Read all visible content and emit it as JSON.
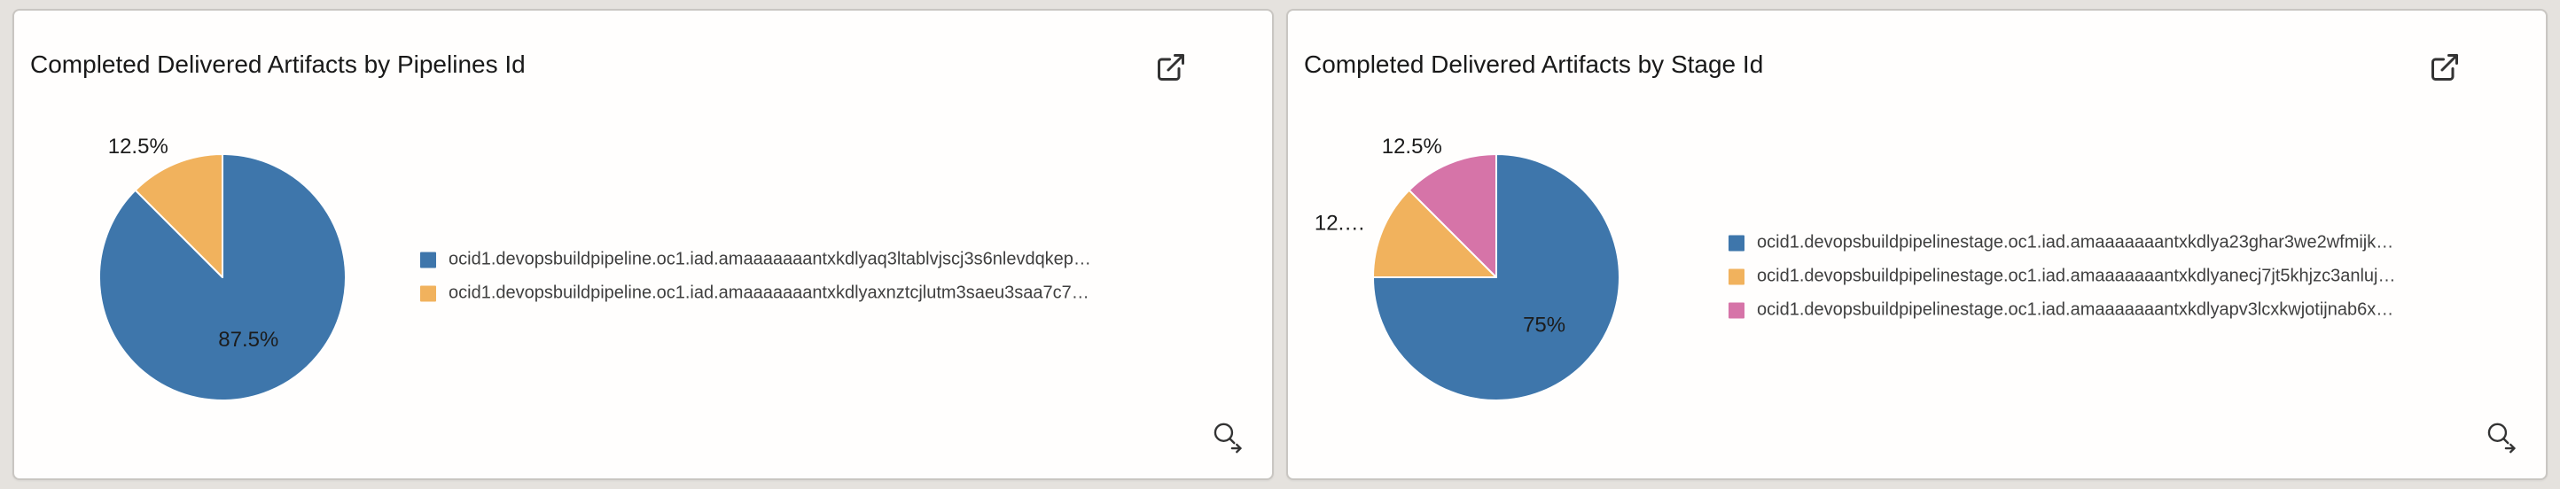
{
  "page": {
    "background_color": "#e5e2de",
    "card_background": "#fffefd"
  },
  "cards": [
    {
      "title": "Completed Delivered Artifacts by Pipelines Id",
      "launch_icon": "open-in-new-window-icon",
      "drill_icon": "magnifier-arrow-icon"
    },
    {
      "title": "Completed Delivered Artifacts by Stage Id",
      "launch_icon": "open-in-new-window-icon",
      "drill_icon": "magnifier-arrow-icon"
    }
  ],
  "chart_data": [
    {
      "type": "pie",
      "title": "Completed Delivered Artifacts by Pipelines Id",
      "unit": "percent",
      "start_angle_deg": 0,
      "direction": "clockwise",
      "legend_position": "right",
      "slices": [
        {
          "name": "ocid1.devopsbuildpipeline.oc1.iad.amaaaaaaantxkdlyaq3ltablvjscj3s6nlevdqkep…",
          "value": 87.5,
          "label": "87.5%",
          "label_placement": "inside",
          "color": "#3e76ab"
        },
        {
          "name": "ocid1.devopsbuildpipeline.oc1.iad.amaaaaaaantxkdlyaxnztcjlutm3saeu3saa7c7…",
          "value": 12.5,
          "label": "12.5%",
          "label_placement": "outside",
          "color": "#f1b25d"
        }
      ]
    },
    {
      "type": "pie",
      "title": "Completed Delivered Artifacts by Stage Id",
      "unit": "percent",
      "start_angle_deg": 0,
      "direction": "clockwise",
      "legend_position": "right",
      "slices": [
        {
          "name": "ocid1.devopsbuildpipelinestage.oc1.iad.amaaaaaaantxkdlya23ghar3we2wfmijk…",
          "value": 75,
          "label": "75%",
          "label_placement": "inside",
          "color": "#3e76ab"
        },
        {
          "name": "ocid1.devopsbuildpipelinestage.oc1.iad.amaaaaaaantxkdlyanecj7jt5khjzc3anluj…",
          "value": 12.5,
          "label": "12.…",
          "label_placement": "outside",
          "color": "#f1b25d"
        },
        {
          "name": "ocid1.devopsbuildpipelinestage.oc1.iad.amaaaaaaantxkdlyapv3lcxkwjotijnab6x…",
          "value": 12.5,
          "label": "12.5%",
          "label_placement": "outside",
          "color": "#d674a8"
        }
      ]
    }
  ]
}
